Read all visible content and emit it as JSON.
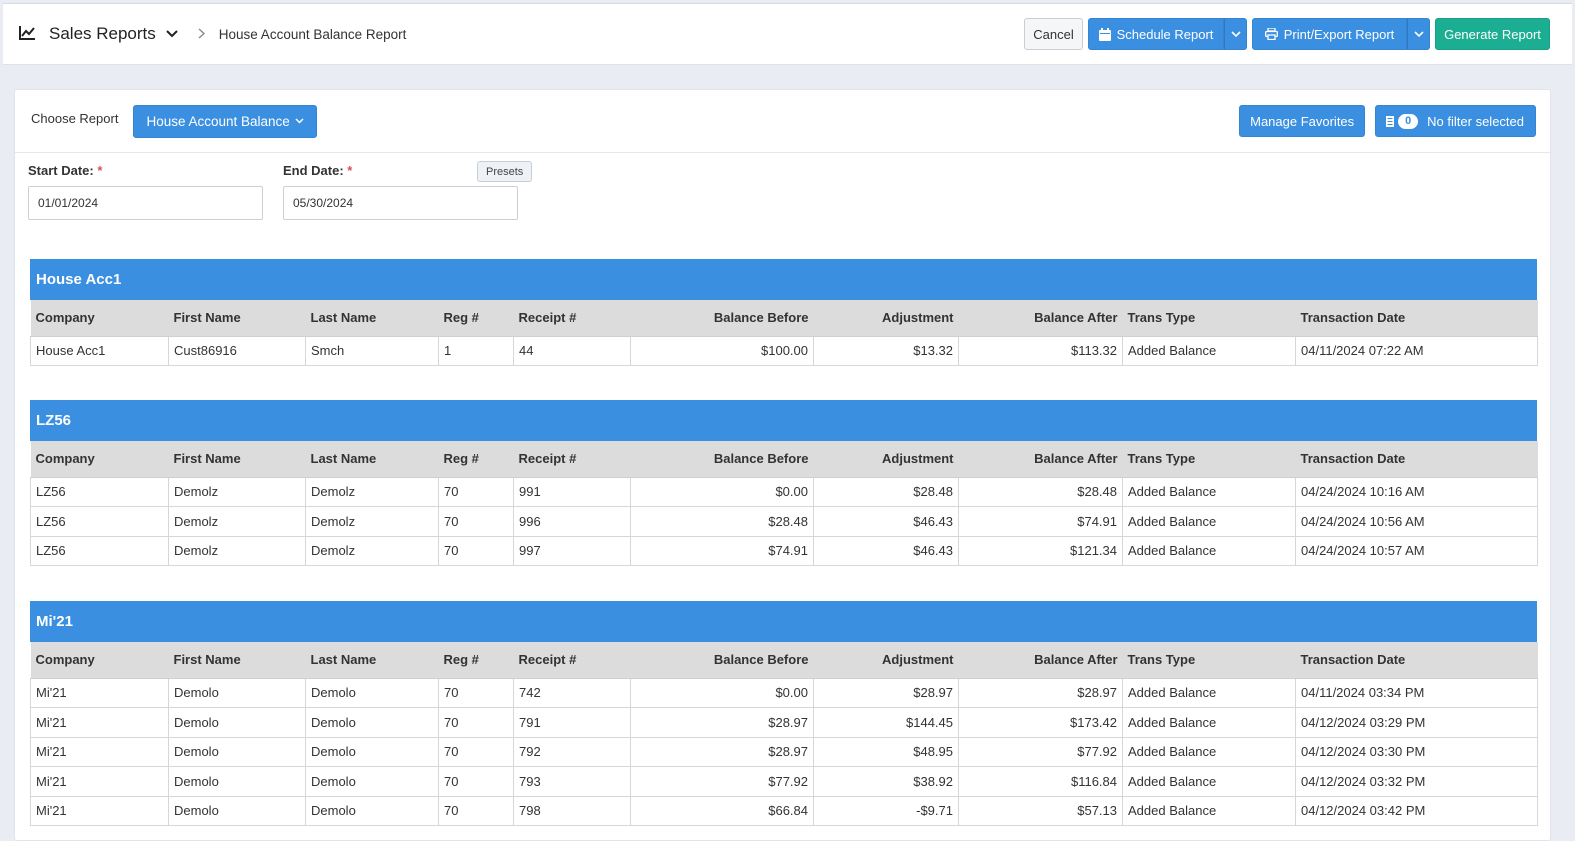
{
  "header": {
    "app_title": "Sales Reports",
    "breadcrumb": "House Account Balance Report",
    "cancel_label": "Cancel",
    "schedule_label": "Schedule Report",
    "print_label": "Print/Export Report",
    "generate_label": "Generate Report"
  },
  "controls": {
    "choose_label": "Choose Report",
    "report_selected": "House Account Balance",
    "manage_favorites_label": "Manage Favorites",
    "filter_count": "0",
    "filter_label": "No filter selected",
    "start_label": "Start Date:",
    "start_value": "01/01/2024",
    "end_label": "End Date:",
    "end_value": "05/30/2024",
    "presets_label": "Presets",
    "required_mark": "*"
  },
  "columns": [
    "Company",
    "First Name",
    "Last Name",
    "Reg #",
    "Receipt #",
    "Balance Before",
    "Adjustment",
    "Balance After",
    "Trans Type",
    "Transaction Date"
  ],
  "groups": [
    {
      "name": "House Acc1",
      "rows": [
        [
          "House Acc1",
          "Cust86916",
          "Smch",
          "1",
          "44",
          "$100.00",
          "$13.32",
          "$113.32",
          "Added Balance",
          "04/11/2024 07:22 AM"
        ]
      ]
    },
    {
      "name": "LZ56",
      "rows": [
        [
          "LZ56",
          "Demolz",
          "Demolz",
          "70",
          "991",
          "$0.00",
          "$28.48",
          "$28.48",
          "Added Balance",
          "04/24/2024 10:16 AM"
        ],
        [
          "LZ56",
          "Demolz",
          "Demolz",
          "70",
          "996",
          "$28.48",
          "$46.43",
          "$74.91",
          "Added Balance",
          "04/24/2024 10:56 AM"
        ],
        [
          "LZ56",
          "Demolz",
          "Demolz",
          "70",
          "997",
          "$74.91",
          "$46.43",
          "$121.34",
          "Added Balance",
          "04/24/2024 10:57 AM"
        ]
      ]
    },
    {
      "name": "Mi'21",
      "rows": [
        [
          "Mi'21",
          "Demolo",
          "Demolo",
          "70",
          "742",
          "$0.00",
          "$28.97",
          "$28.97",
          "Added Balance",
          "04/11/2024 03:34 PM"
        ],
        [
          "Mi'21",
          "Demolo",
          "Demolo",
          "70",
          "791",
          "$28.97",
          "$144.45",
          "$173.42",
          "Added Balance",
          "04/12/2024 03:29 PM"
        ],
        [
          "Mi'21",
          "Demolo",
          "Demolo",
          "70",
          "792",
          "$28.97",
          "$48.95",
          "$77.92",
          "Added Balance",
          "04/12/2024 03:30 PM"
        ],
        [
          "Mi'21",
          "Demolo",
          "Demolo",
          "70",
          "793",
          "$77.92",
          "$38.92",
          "$116.84",
          "Added Balance",
          "04/12/2024 03:32 PM"
        ],
        [
          "Mi'21",
          "Demolo",
          "Demolo",
          "70",
          "798",
          "$66.84",
          "-$9.71",
          "$57.13",
          "Added Balance",
          "04/12/2024 03:42 PM"
        ]
      ]
    }
  ],
  "icons": {
    "app": "chart-line-icon",
    "schedule": "calendar-icon",
    "print": "printer-icon",
    "filter": "filter-list-icon"
  },
  "colors": {
    "primary": "#3a8fe0",
    "success": "#1bae92",
    "header_row": "#dcdcdc"
  }
}
